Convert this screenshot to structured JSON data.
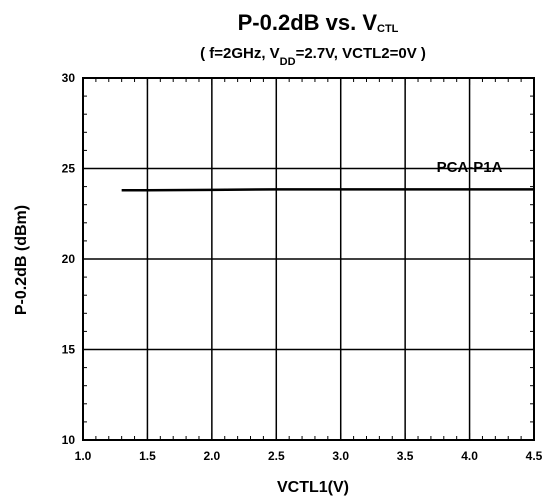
{
  "chart_data": {
    "type": "line",
    "title": {
      "main": "P-0.2dB vs. V",
      "main_sub": "CTL",
      "sub_before": "( f=2GHz, V",
      "sub_sub": "DD",
      "sub_after": "=2.7V, VCTL2=0V )"
    },
    "xlabel": "VCTL1(V)",
    "ylabel": "P-0.2dB (dBm)",
    "xlim": [
      1.0,
      4.5
    ],
    "ylim": [
      10,
      30
    ],
    "xticks": [
      1.0,
      1.5,
      2.0,
      2.5,
      3.0,
      3.5,
      4.0,
      4.5
    ],
    "xtick_labels": [
      "1.0",
      "1.5",
      "2.0",
      "2.5",
      "3.0",
      "3.5",
      "4.0",
      "4.5"
    ],
    "yticks": [
      10,
      15,
      20,
      25,
      30
    ],
    "ytick_labels": [
      "10",
      "15",
      "20",
      "25",
      "30"
    ],
    "grid": true,
    "series": [
      {
        "name": "PCA-P1A",
        "x": [
          1.3,
          1.5,
          2.0,
          2.5,
          3.0,
          3.5,
          4.0,
          4.5
        ],
        "y": [
          23.8,
          23.8,
          23.82,
          23.85,
          23.85,
          23.85,
          23.85,
          23.85
        ],
        "color": "#000000"
      }
    ]
  }
}
